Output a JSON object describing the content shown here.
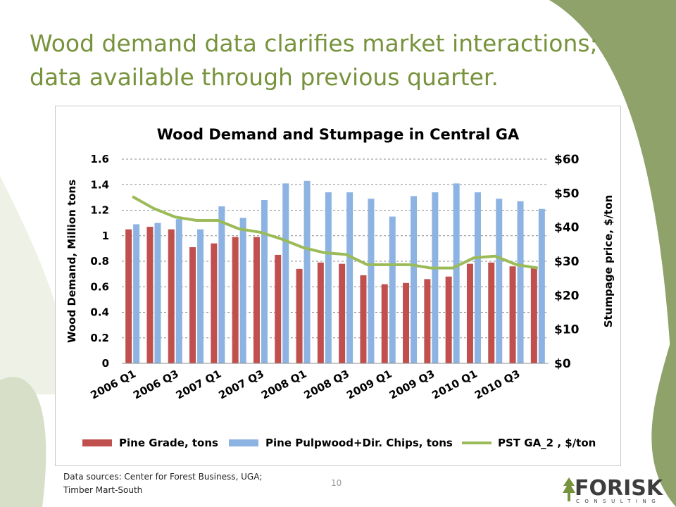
{
  "slide": {
    "title_line1": "Wood demand data clarifies market interactions;",
    "title_line2": "data available through previous quarter.",
    "sources_line1": "Data sources: Center for Forest Business, UGA;",
    "sources_line2": "Timber Mart-South",
    "page_number": "10",
    "logo_text": "FORISK",
    "logo_subtext": "CONSULTING",
    "accent_color": "#77933c"
  },
  "chart_data": {
    "type": "bar",
    "title": "Wood Demand and Stumpage in Central GA",
    "ylabel": "Wood Demand, Million tons",
    "y2label": "Stumpage price, $/ton",
    "ylim": [
      0,
      1.6
    ],
    "y2lim": [
      0,
      60
    ],
    "yticks": [
      "0",
      "0.2",
      "0.4",
      "0.6",
      "0.8",
      "1",
      "1.2",
      "1.4",
      "1.6"
    ],
    "y2ticks": [
      "$0",
      "$10",
      "$20",
      "$30",
      "$40",
      "$50",
      "$60"
    ],
    "grid": true,
    "legend_position": "bottom",
    "categories": [
      "2006 Q1",
      "2006 Q2",
      "2006 Q3",
      "2006 Q4",
      "2007 Q1",
      "2007 Q2",
      "2007 Q3",
      "2007 Q4",
      "2008 Q1",
      "2008 Q2",
      "2008 Q3",
      "2008 Q4",
      "2009 Q1",
      "2009 Q2",
      "2009 Q3",
      "2009 Q4",
      "2010 Q1",
      "2010 Q2",
      "2010 Q3",
      "2010 Q4"
    ],
    "xtick_labels": [
      "2006 Q1",
      "2006 Q3",
      "2007 Q1",
      "2007 Q3",
      "2008 Q1",
      "2008 Q3",
      "2009 Q1",
      "2009 Q3",
      "2010 Q1",
      "2010 Q3"
    ],
    "series": [
      {
        "name": "Pine Grade, tons",
        "type": "bar",
        "axis": "left",
        "color": "#c0504d",
        "values": [
          1.05,
          1.07,
          1.05,
          0.91,
          0.94,
          0.99,
          0.99,
          0.85,
          0.74,
          0.79,
          0.78,
          0.69,
          0.62,
          0.63,
          0.66,
          0.68,
          0.78,
          0.79,
          0.76,
          0.76
        ]
      },
      {
        "name": "Pine Pulpwood+Dir. Chips, tons",
        "type": "bar",
        "axis": "left",
        "color": "#8db3e2",
        "values": [
          1.09,
          1.1,
          1.13,
          1.05,
          1.23,
          1.14,
          1.28,
          1.41,
          1.43,
          1.34,
          1.34,
          1.29,
          1.15,
          1.31,
          1.34,
          1.41,
          1.34,
          1.29,
          1.27,
          1.21
        ]
      },
      {
        "name": "PST GA_2 , $/ton",
        "type": "line",
        "axis": "right",
        "color": "#9bbb59",
        "values": [
          49,
          45.5,
          43,
          42,
          42,
          39.5,
          38.5,
          36.5,
          34,
          32.5,
          32,
          29,
          29,
          29,
          28,
          28,
          31,
          31.5,
          29,
          28
        ]
      }
    ]
  }
}
